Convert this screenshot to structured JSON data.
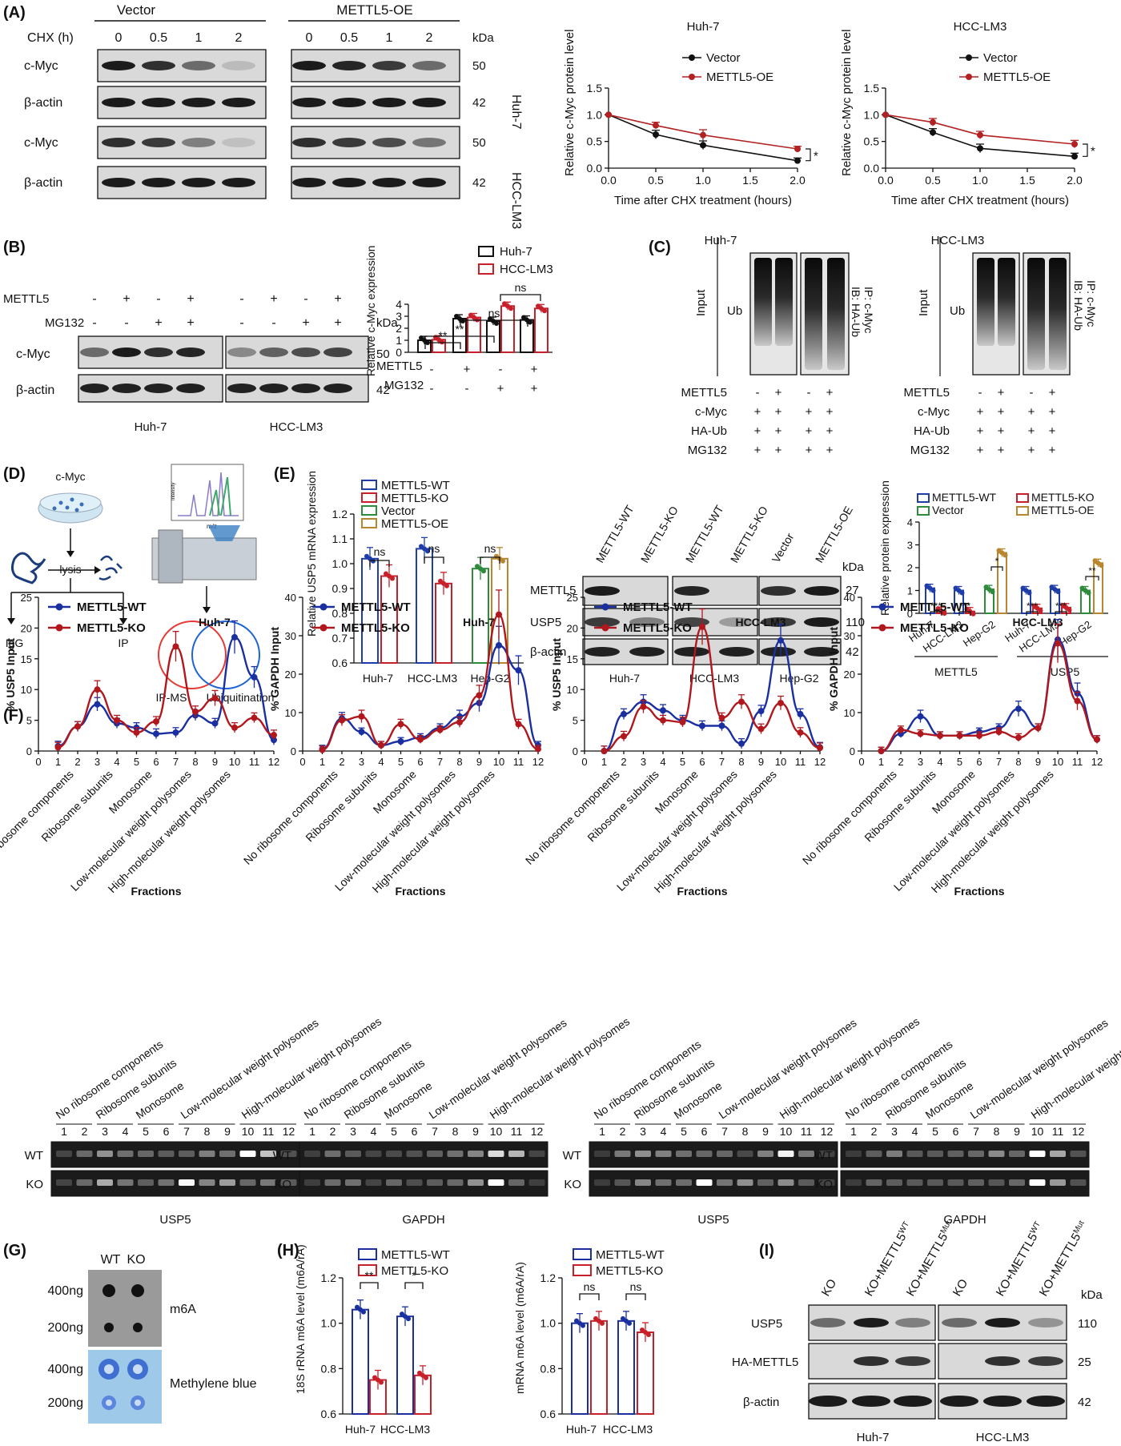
{
  "panels": {
    "a": "(A)",
    "b": "(B)",
    "c": "(C)",
    "d": "(D)",
    "e": "(E)",
    "f": "(F)",
    "g": "(G)",
    "h": "(H)",
    "i": "(I)"
  },
  "a": {
    "vector": "Vector",
    "oe": "METTL5-OE",
    "chx": "CHX (h)",
    "times": [
      "0",
      "0.5",
      "1",
      "2"
    ],
    "kda": "kDa",
    "rows": [
      {
        "label": "c-Myc",
        "mw": "50"
      },
      {
        "label": "β-actin",
        "mw": "42"
      },
      {
        "label": "c-Myc",
        "mw": "50"
      },
      {
        "label": "β-actin",
        "mw": "42"
      }
    ],
    "cells": [
      "Huh-7",
      "HCC-LM3"
    ]
  },
  "b": {
    "mettl5": "METTL5",
    "mg132": "MG132",
    "kda": "kDa",
    "cmyc": "c-Myc",
    "actin": "β-actin",
    "mw": [
      "50",
      "42"
    ],
    "sign_mettl5": [
      "-",
      "+",
      "-",
      "+",
      "-",
      "+",
      "-",
      "+"
    ],
    "sign_mg132": [
      "-",
      "-",
      "+",
      "+",
      "-",
      "-",
      "+",
      "+"
    ],
    "cells": [
      "Huh-7",
      "HCC-LM3"
    ],
    "sig": [
      "**",
      "**",
      "ns",
      "ns"
    ],
    "xsign1": [
      "-",
      "+",
      "-",
      "+"
    ],
    "xsign2": [
      "-",
      "-",
      "+",
      "+"
    ]
  },
  "c": {
    "cells": [
      "Huh-7",
      "HCC-LM3"
    ],
    "input": "Input",
    "ub": "Ub",
    "ip": "IP: c-Myc",
    "ib": "IB: HA-Ub",
    "rows": [
      "METTL5",
      "c-Myc",
      "HA-Ub",
      "MG132"
    ],
    "signs": [
      [
        "-",
        "+",
        "-",
        "+"
      ],
      [
        "+",
        "+",
        "+",
        "+"
      ],
      [
        "+",
        "+",
        "+",
        "+"
      ],
      [
        "+",
        "+",
        "+",
        "+"
      ]
    ]
  },
  "d": {
    "cmyc": "c-Myc",
    "lysis": "lysis",
    "igg": "IgG",
    "ip": "IP",
    "intensity": "Intensity",
    "mz": "m/z",
    "ipms": "IP-MS",
    "ubi": "Ubiquitination"
  },
  "e": {
    "mettl5": "METTL5",
    "usp5": "USP5",
    "actin": "β-actin",
    "kda": "kDa",
    "mw": [
      "27",
      "110",
      "42"
    ],
    "lanes": [
      "METTL5-WT",
      "METTL5-KO",
      "METTL5-WT",
      "METTL5-KO",
      "Vector",
      "METTL5-OE"
    ],
    "cells": [
      "Huh-7",
      "HCC-LM3",
      "Hep-G2"
    ],
    "ns": "ns",
    "groups": [
      "METTL5",
      "USP5"
    ],
    "sig": [
      "***",
      "***",
      "*",
      "***",
      "***",
      "**"
    ]
  },
  "f": {
    "fractions": "Fractions",
    "ticks": [
      "0",
      "1",
      "2",
      "3",
      "4",
      "5",
      "6",
      "7",
      "8",
      "9",
      "10",
      "11",
      "12"
    ],
    "cat": [
      "No ribosome components",
      "Ribosome subunits",
      "Monosome",
      "Low-molecular weight polysomes",
      "High-molecular weight polysomes"
    ],
    "gel_names": [
      "USP5",
      "GAPDH",
      "USP5",
      "GAPDH"
    ],
    "wt": "WT",
    "ko": "KO",
    "lanes": [
      "1",
      "2",
      "3",
      "4",
      "5",
      "6",
      "7",
      "8",
      "9",
      "10",
      "11",
      "12"
    ]
  },
  "g": {
    "wt": "WT",
    "ko": "KO",
    "amts": [
      "400ng",
      "200ng",
      "400ng",
      "200ng"
    ],
    "m6a": "m6A",
    "mb": "Methylene blue"
  },
  "i": {
    "lanes": [
      "KO",
      "KO+METTL5",
      "KO+METTL5",
      "KO",
      "KO+METTL5",
      "KO+METTL5"
    ],
    "sup": [
      "",
      "WT",
      "Mut",
      "",
      "WT",
      "Mut"
    ],
    "rows": [
      "USP5",
      "HA-METTL5",
      "β-actin"
    ],
    "mw": [
      "110",
      "25",
      "42"
    ],
    "kda": "kDa",
    "cells": [
      "Huh-7",
      "HCC-LM3"
    ]
  },
  "chart_data": [
    {
      "type": "line",
      "name": "Huh-7 c-Myc CHX chase",
      "title": "Huh-7",
      "xlabel": "Time after CHX treatment (hours)",
      "ylabel": "Relative c-Myc protein level",
      "x": [
        0,
        0.5,
        1,
        2
      ],
      "xlim": [
        0,
        2
      ],
      "ylim": [
        0,
        1.5
      ],
      "xticks": [
        "0.0",
        "0.5",
        "1.0",
        "1.5",
        "2.0"
      ],
      "yticks": [
        "0.0",
        "0.5",
        "1.0",
        "1.5"
      ],
      "legend": "top-right",
      "sig": "*",
      "series": [
        {
          "name": "Vector",
          "values": [
            1.0,
            0.63,
            0.43,
            0.14
          ],
          "err": [
            0,
            0.08,
            0.08,
            0.05
          ],
          "color": "#111111"
        },
        {
          "name": "METTL5-OE",
          "values": [
            1.0,
            0.8,
            0.62,
            0.36
          ],
          "err": [
            0,
            0.06,
            0.1,
            0.05
          ],
          "color": "#b22222"
        }
      ]
    },
    {
      "type": "line",
      "name": "HCC-LM3 c-Myc CHX chase",
      "title": "HCC-LM3",
      "xlabel": "Time after CHX treatment (hours)",
      "ylabel": "Relative c-Myc protein level",
      "x": [
        0,
        0.5,
        1,
        2
      ],
      "xlim": [
        0,
        2
      ],
      "ylim": [
        0,
        1.5
      ],
      "xticks": [
        "0.0",
        "0.5",
        "1.0",
        "1.5",
        "2.0"
      ],
      "yticks": [
        "0.0",
        "0.5",
        "1.0",
        "1.5"
      ],
      "legend": "top-right",
      "sig": "*",
      "series": [
        {
          "name": "Vector",
          "values": [
            1.0,
            0.67,
            0.37,
            0.22
          ],
          "err": [
            0,
            0.07,
            0.08,
            0.06
          ],
          "color": "#111111"
        },
        {
          "name": "METTL5-OE",
          "values": [
            1.0,
            0.86,
            0.62,
            0.45
          ],
          "err": [
            0,
            0.07,
            0.07,
            0.07
          ],
          "color": "#b22222"
        }
      ]
    },
    {
      "type": "bar",
      "name": "Relative c-Myc expression",
      "ylabel": "Relative c-Myc expression",
      "ylim": [
        0,
        4
      ],
      "yticks": [
        "0",
        "1",
        "2",
        "3",
        "4"
      ],
      "categories": [
        "METTL5-/MG132-",
        "METTL5+/MG132-",
        "METTL5-/MG132+",
        "METTL5+/MG132+"
      ],
      "series": [
        {
          "name": "Huh-7",
          "values": [
            1.0,
            2.8,
            2.6,
            2.7
          ],
          "color": "#111111"
        },
        {
          "name": "HCC-LM3",
          "values": [
            1.05,
            2.9,
            3.85,
            3.65
          ],
          "color": "#c8202a"
        }
      ]
    },
    {
      "type": "bar",
      "name": "Relative USP5 mRNA expression",
      "ylabel": "Relative USP5 mRNA expression",
      "ylim": [
        0.6,
        1.2
      ],
      "yticks": [
        "0.6",
        "0.7",
        "0.8",
        "0.9",
        "1.0",
        "1.1",
        "1.2"
      ],
      "categories": [
        "Huh-7",
        "HCC-LM3",
        "Hep-G2"
      ],
      "series": [
        {
          "name": "METTL5-WT",
          "values": [
            1.02,
            1.06,
            null
          ]
        },
        {
          "name": "METTL5-KO",
          "values": [
            0.95,
            0.92,
            null
          ]
        },
        {
          "name": "Vector",
          "values": [
            null,
            null,
            0.98
          ]
        },
        {
          "name": "METTL5-OE",
          "values": [
            null,
            null,
            1.02
          ]
        }
      ]
    },
    {
      "type": "bar",
      "name": "Relative protein expression",
      "ylabel": "Relative protein expression",
      "ylim": [
        0,
        4
      ],
      "yticks": [
        "0",
        "1",
        "2",
        "3",
        "4"
      ],
      "categories": [
        "METTL5 Huh-7",
        "METTL5 HCC-LM3",
        "METTL5 Hep-G2",
        "USP5 Huh-7",
        "USP5 HCC-LM3",
        "USP5 Hep-G2"
      ],
      "series": [
        {
          "name": "METTL5-WT",
          "values": [
            1.1,
            1.0,
            null,
            1.0,
            1.05,
            null
          ]
        },
        {
          "name": "METTL5-KO",
          "values": [
            0.1,
            0.08,
            null,
            0.22,
            0.25,
            null
          ]
        },
        {
          "name": "Vector",
          "values": [
            null,
            null,
            1.05,
            null,
            null,
            1.0
          ]
        },
        {
          "name": "METTL5-OE",
          "values": [
            null,
            null,
            2.65,
            null,
            null,
            2.2
          ]
        }
      ]
    },
    {
      "type": "line",
      "name": "% USP5 Input Huh-7",
      "title": "Huh-7",
      "ylabel": "% USP5 Input",
      "xlabel": "Fractions",
      "ylim": [
        0,
        25
      ],
      "yticks": [
        "0",
        "5",
        "10",
        "15",
        "20",
        "25"
      ],
      "x": [
        1,
        2,
        3,
        4,
        5,
        6,
        7,
        8,
        9,
        10,
        11,
        12
      ],
      "series": [
        {
          "name": "METTL5-WT",
          "values": [
            0.8,
            4,
            7.6,
            4.5,
            3.8,
            2.8,
            3,
            5.8,
            4.5,
            18.5,
            12,
            1.8
          ]
        },
        {
          "name": "METTL5-KO",
          "values": [
            0.6,
            4,
            10,
            5,
            3,
            4.8,
            17,
            6.4,
            8.6,
            3.8,
            5.4,
            2.6
          ]
        }
      ]
    },
    {
      "type": "line",
      "name": "% GAPDH Input Huh-7",
      "title": "Huh-7",
      "ylabel": "% GAPDH Input",
      "xlabel": "Fractions",
      "ylim": [
        0,
        40
      ],
      "yticks": [
        "0",
        "10",
        "20",
        "30",
        "40"
      ],
      "x": [
        1,
        2,
        3,
        4,
        5,
        6,
        7,
        8,
        9,
        10,
        11,
        12
      ],
      "series": [
        {
          "name": "METTL5-WT",
          "values": [
            0.5,
            8.5,
            5,
            1.5,
            2.5,
            3.5,
            6,
            9,
            12.5,
            27.5,
            21,
            1.5
          ]
        },
        {
          "name": "METTL5-KO",
          "values": [
            0.3,
            8,
            9,
            1.5,
            7,
            3,
            5.5,
            7.5,
            14.5,
            35.5,
            7,
            0.5
          ]
        }
      ]
    },
    {
      "type": "line",
      "name": "% USP5 Input HCC-LM3",
      "title": "HCC-LM3",
      "ylabel": "% USP5 Input",
      "xlabel": "Fractions",
      "ylim": [
        0,
        25
      ],
      "yticks": [
        "0",
        "5",
        "10",
        "15",
        "20",
        "25"
      ],
      "x": [
        1,
        2,
        3,
        4,
        5,
        6,
        7,
        8,
        9,
        10,
        11,
        12
      ],
      "series": [
        {
          "name": "METTL5-WT",
          "values": [
            0,
            6,
            8,
            6.6,
            5,
            4.1,
            4.1,
            1.2,
            6.5,
            18,
            6,
            0.6
          ]
        },
        {
          "name": "METTL5-KO",
          "values": [
            0,
            2.4,
            7.2,
            5,
            4.7,
            20.2,
            5.4,
            8,
            3.6,
            7.8,
            3,
            0.5
          ]
        }
      ]
    },
    {
      "type": "line",
      "name": "% GAPDH Input HCC-LM3",
      "title": "HCC-LM3",
      "ylabel": "% GAPDH Input",
      "xlabel": "Fractions",
      "ylim": [
        0,
        40
      ],
      "yticks": [
        "0",
        "10",
        "20",
        "30",
        "40"
      ],
      "x": [
        1,
        2,
        3,
        4,
        5,
        6,
        7,
        8,
        9,
        10,
        11,
        12
      ],
      "series": [
        {
          "name": "METTL5-WT",
          "values": [
            0,
            4.5,
            9,
            4,
            4,
            5,
            6,
            11,
            6,
            29,
            15,
            3
          ]
        },
        {
          "name": "METTL5-KO",
          "values": [
            0,
            5.5,
            4.5,
            4,
            4,
            4,
            5,
            3.5,
            6,
            28,
            13,
            3
          ]
        }
      ]
    },
    {
      "type": "bar",
      "name": "18S rRNA m6A level",
      "ylabel": "18S rRNA m6A level (m6A/rA)",
      "ylim": [
        0.6,
        1.2
      ],
      "yticks": [
        "0.6",
        "0.8",
        "1.0",
        "1.2"
      ],
      "categories": [
        "Huh-7",
        "HCC-LM3"
      ],
      "sig": [
        "**",
        "*"
      ],
      "series": [
        {
          "name": "METTL5-WT",
          "values": [
            1.06,
            1.03
          ]
        },
        {
          "name": "METTL5-KO",
          "values": [
            0.75,
            0.77
          ]
        }
      ]
    },
    {
      "type": "bar",
      "name": "mRNA m6A level",
      "ylabel": "mRNA m6A level (m6A/rA)",
      "ylim": [
        0.6,
        1.2
      ],
      "yticks": [
        "0.6",
        "0.8",
        "1.0",
        "1.2"
      ],
      "categories": [
        "Huh-7",
        "HCC-LM3"
      ],
      "sig": [
        "ns",
        "ns"
      ],
      "series": [
        {
          "name": "METTL5-WT",
          "values": [
            1.0,
            1.01
          ]
        },
        {
          "name": "METTL5-KO",
          "values": [
            1.01,
            0.96
          ]
        }
      ]
    }
  ]
}
